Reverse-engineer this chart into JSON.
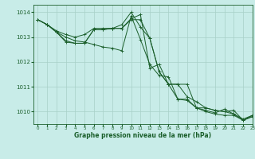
{
  "title": "Graphe pression niveau de la mer (hPa)",
  "background_color": "#c8ece8",
  "grid_color": "#a8d0c8",
  "line_color": "#1a5e2a",
  "xlim": [
    -0.5,
    23
  ],
  "ylim": [
    1009.5,
    1014.3
  ],
  "xticks": [
    0,
    1,
    2,
    3,
    4,
    5,
    6,
    7,
    8,
    9,
    10,
    11,
    12,
    13,
    14,
    15,
    16,
    17,
    18,
    19,
    20,
    21,
    22,
    23
  ],
  "yticks": [
    1010,
    1011,
    1012,
    1013,
    1014
  ],
  "series": [
    {
      "x": [
        0,
        1,
        2,
        3,
        4,
        5,
        6,
        7,
        8,
        9,
        10,
        11,
        12,
        13,
        14,
        15,
        16,
        17,
        18,
        19,
        20,
        21,
        22,
        23
      ],
      "y": [
        1013.7,
        1013.5,
        1013.2,
        1013.0,
        1012.85,
        1012.8,
        1012.7,
        1012.6,
        1012.55,
        1012.45,
        1013.85,
        1012.9,
        1011.9,
        1011.45,
        1011.4,
        1010.5,
        1010.45,
        1010.15,
        1010.0,
        1009.9,
        1009.85,
        1009.85,
        1009.65,
        1009.85
      ]
    },
    {
      "x": [
        0,
        1,
        2,
        3,
        4,
        5,
        6,
        7,
        8,
        9,
        10,
        11,
        12,
        13,
        14,
        15,
        16,
        17,
        18,
        19,
        20,
        21,
        22,
        23
      ],
      "y": [
        1013.7,
        1013.5,
        1013.25,
        1013.1,
        1013.0,
        1013.1,
        1013.35,
        1013.35,
        1013.35,
        1013.35,
        1013.75,
        1013.9,
        1011.75,
        1011.9,
        1011.1,
        1010.5,
        1010.5,
        1010.15,
        1010.05,
        1009.95,
        1010.1,
        1009.9,
        1009.7,
        1009.85
      ]
    },
    {
      "x": [
        0,
        1,
        2,
        3,
        4,
        5,
        6,
        7,
        8,
        9,
        10,
        11,
        12,
        13,
        14,
        15,
        16,
        17,
        18,
        19,
        20,
        21,
        22,
        23
      ],
      "y": [
        1013.7,
        1013.5,
        1013.2,
        1012.8,
        1012.75,
        1012.75,
        1013.3,
        1013.3,
        1013.35,
        1013.35,
        1013.7,
        1013.7,
        1012.95,
        1011.6,
        1011.1,
        1011.1,
        1010.6,
        1010.4,
        1010.15,
        1010.05,
        1010.0,
        1009.9,
        1009.65,
        1009.8
      ]
    },
    {
      "x": [
        0,
        1,
        2,
        3,
        4,
        5,
        6,
        7,
        8,
        9,
        10,
        11,
        12,
        13,
        14,
        15,
        16,
        17,
        18,
        19,
        20,
        21,
        22,
        23
      ],
      "y": [
        1013.7,
        1013.5,
        1013.2,
        1012.85,
        1012.75,
        1012.75,
        1013.3,
        1013.3,
        1013.35,
        1013.5,
        1014.0,
        1013.4,
        1012.95,
        1011.6,
        1011.1,
        1011.1,
        1011.1,
        1010.15,
        1010.15,
        1010.05,
        1010.0,
        1010.05,
        1009.65,
        1009.8
      ]
    }
  ]
}
